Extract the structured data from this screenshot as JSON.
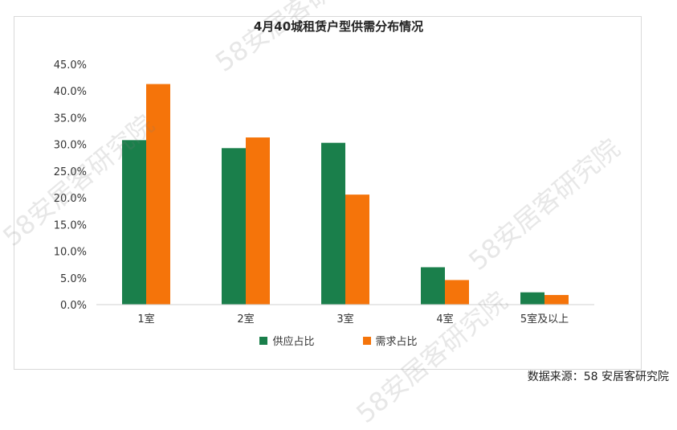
{
  "chart_data": {
    "type": "bar",
    "title": "4月40城租赁户型供需分布情况",
    "categories": [
      "1室",
      "2室",
      "3室",
      "4室",
      "5室及以上"
    ],
    "series": [
      {
        "name": "供应占比",
        "color": "#1a7f4b",
        "values": [
          30.8,
          29.3,
          30.3,
          7.0,
          2.3
        ]
      },
      {
        "name": "需求占比",
        "color": "#f5740a",
        "values": [
          41.3,
          31.3,
          20.6,
          4.6,
          1.8
        ]
      }
    ],
    "ylim": [
      0,
      45
    ],
    "yticks": [
      "0.0%",
      "5.0%",
      "10.0%",
      "15.0%",
      "20.0%",
      "25.0%",
      "30.0%",
      "35.0%",
      "40.0%",
      "45.0%"
    ],
    "grid": false,
    "legend": "bottom"
  },
  "source": "数据来源：58 安居客研究院",
  "watermarks": [
    "58安居客研究院",
    "58安居客研究院",
    "58安居客研究院",
    "58安居客研究院"
  ]
}
